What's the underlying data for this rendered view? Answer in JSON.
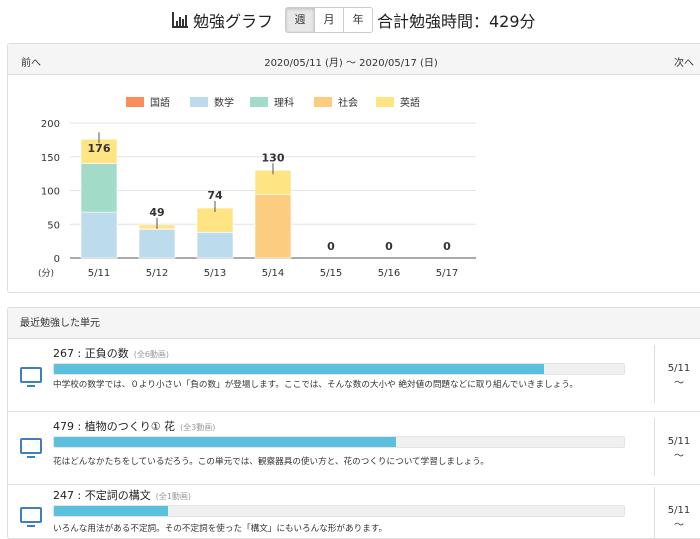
{
  "header": {
    "title": "勉強グラフ",
    "periods": [
      {
        "label": "週",
        "active": true
      },
      {
        "label": "月",
        "active": false
      },
      {
        "label": "年",
        "active": false
      }
    ],
    "total": "合計勉強時間：429分"
  },
  "nav": {
    "prev": "前へ",
    "range": "2020/05/11 (月) 〜 2020/05/17 (日)",
    "next": "次へ"
  },
  "chart_data": {
    "type": "bar",
    "stacked": true,
    "categories": [
      "5/11",
      "5/12",
      "5/13",
      "5/14",
      "5/15",
      "5/16",
      "5/17"
    ],
    "series": [
      {
        "name": "国語",
        "color": "#f98d5c",
        "values": [
          0,
          0,
          0,
          0,
          0,
          0,
          0
        ]
      },
      {
        "name": "数学",
        "color": "#bcdcee",
        "values": [
          68,
          42,
          38,
          0,
          0,
          0,
          0
        ]
      },
      {
        "name": "理科",
        "color": "#a3dbc9",
        "values": [
          72,
          0,
          0,
          0,
          0,
          0,
          0
        ]
      },
      {
        "name": "社会",
        "color": "#fccc80",
        "values": [
          0,
          2,
          0,
          94,
          0,
          0,
          0
        ]
      },
      {
        "name": "英語",
        "color": "#fee483",
        "values": [
          36,
          5,
          36,
          36,
          0,
          0,
          0
        ]
      }
    ],
    "totals": [
      176,
      49,
      74,
      130,
      0,
      0,
      0
    ],
    "yticks": [
      0,
      50,
      100,
      150,
      200
    ],
    "ylim": [
      0,
      200
    ],
    "yunit": "(分)",
    "legend": "top"
  },
  "recent": {
    "heading": "最近勉強した単元",
    "items": [
      {
        "title": "267 : 正負の数",
        "sub": "(全6動画)",
        "progress": 0.86,
        "desc": "中学校の数学では、０より小さい「負の数」が登場します。ここでは、そんな数の大小や 絶対値の問題などに取り組んでいきましょう。",
        "date": "5/11",
        "tilde": "〜"
      },
      {
        "title": "479 : 植物のつくり① 花",
        "sub": "(全3動画)",
        "progress": 0.6,
        "desc": "花はどんなかたちをしているだろう。この単元では、観察器具の使い方と、花のつくりについて学習しましょう。",
        "date": "5/11",
        "tilde": "〜"
      },
      {
        "title": "247 : 不定詞の構文",
        "sub": "(全1動画)",
        "progress": 0.2,
        "desc": "いろんな用法がある不定詞。その不定詞を使った「構文」にもいろんな形があります。",
        "date": "5/11",
        "tilde": "〜"
      }
    ]
  }
}
